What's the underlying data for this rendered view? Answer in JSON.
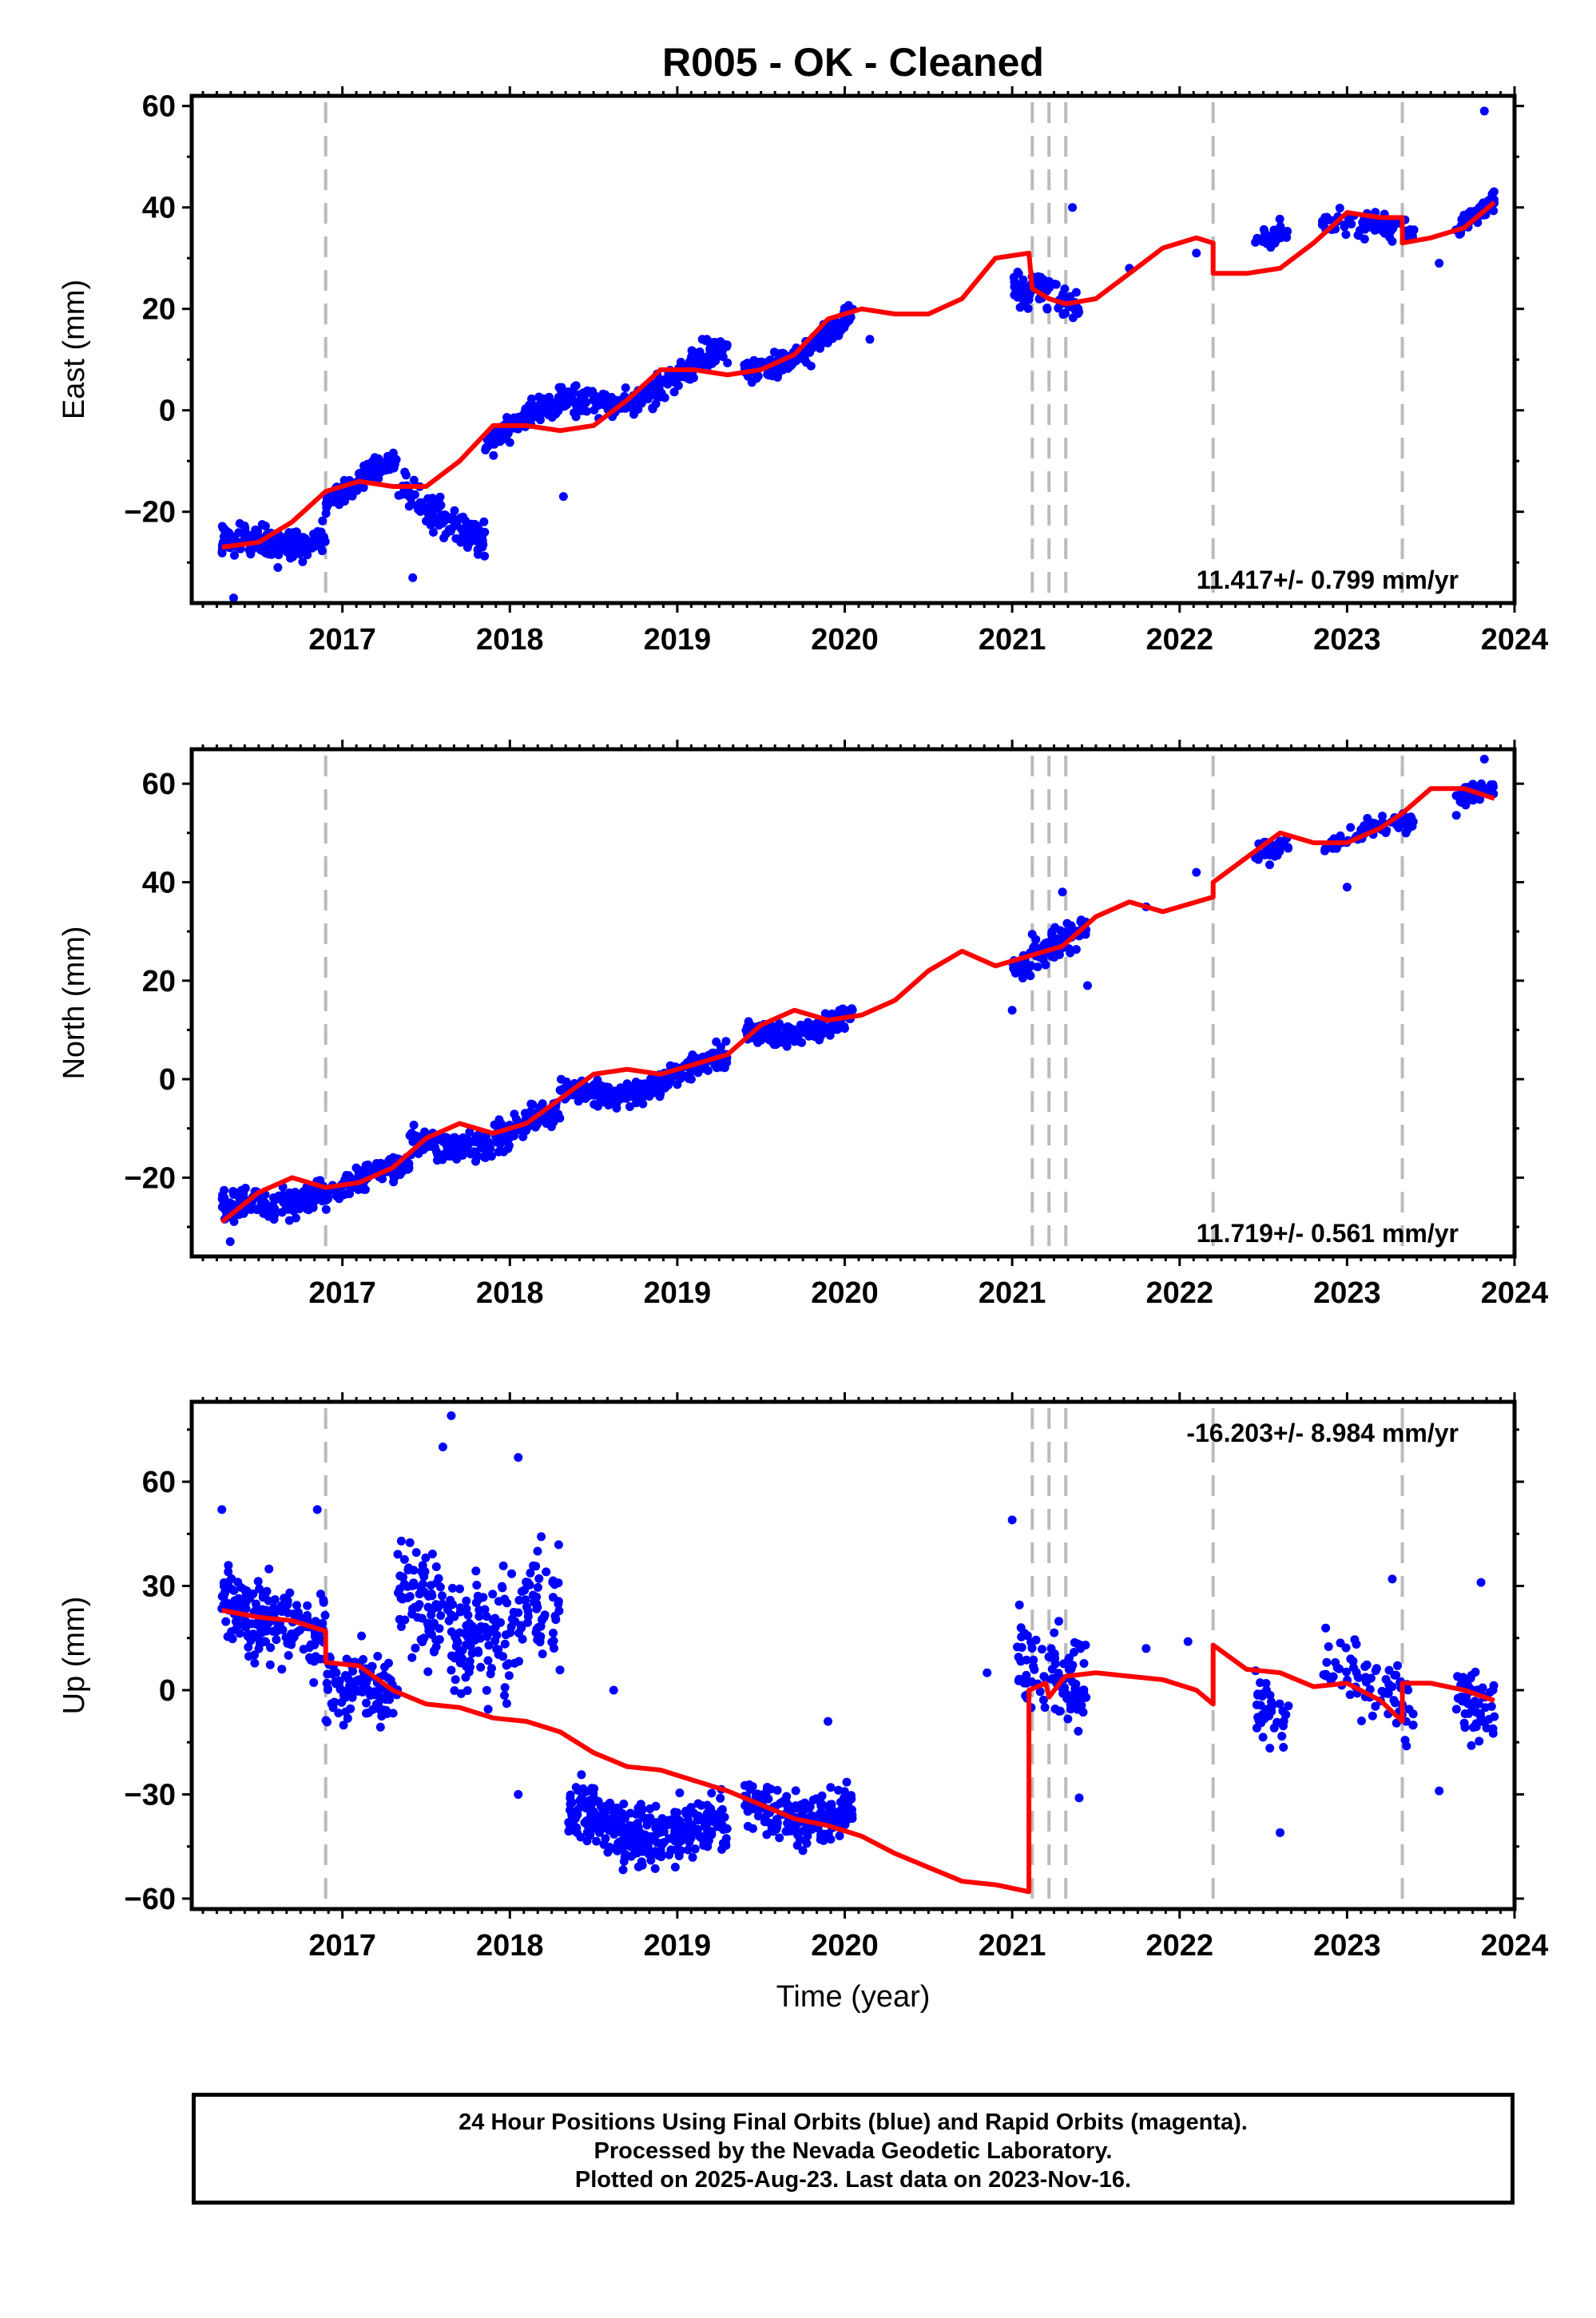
{
  "title": "R005  - OK - Cleaned",
  "xlabel": "Time (year)",
  "caption": [
    "24 Hour Positions Using Final Orbits (blue) and Rapid Orbits (magenta).",
    "Processed by the Nevada Geodetic Laboratory.",
    "Plotted on 2025-Aug-23. Last data on 2023-Nov-16."
  ],
  "colors": {
    "data": "#0000ff",
    "model": "#ff0000",
    "steps": "#bbbbbb",
    "frame": "#000000"
  },
  "chart_data": [
    {
      "type": "scatter",
      "ylabel": "East (mm)",
      "rate_label": "11.417+/- 0.799 mm/yr",
      "xlim": [
        2016.1,
        2024.0
      ],
      "ylim": [
        -38,
        62
      ],
      "xticks": [
        2017,
        2018,
        2019,
        2020,
        2021,
        2022,
        2023,
        2024
      ],
      "yticks": [
        -20,
        0,
        20,
        40,
        60
      ],
      "steps": [
        2016.9,
        2021.12,
        2021.22,
        2021.32,
        2022.2,
        2023.33
      ],
      "data_segments": [
        {
          "x": [
            2016.28,
            2016.9
          ],
          "a": -27,
          "b": -24,
          "amp": 1.5,
          "noise": 2.6,
          "n": 180
        },
        {
          "x": [
            2016.9,
            2017.33
          ],
          "a": -17,
          "b": -12,
          "amp": 2.0,
          "noise": 2.2,
          "n": 110
        },
        {
          "x": [
            2017.33,
            2017.85
          ],
          "a": -17,
          "b": -23,
          "amp": 3.0,
          "noise": 3.2,
          "n": 120
        },
        {
          "x": [
            2017.85,
            2019.3
          ],
          "a": -5,
          "b": 10,
          "amp": 2.5,
          "noise": 2.3,
          "n": 360
        },
        {
          "x": [
            2019.4,
            2020.05
          ],
          "a": 7,
          "b": 19,
          "amp": 2.0,
          "noise": 2.0,
          "n": 170
        },
        {
          "x": [
            2021.0,
            2021.4
          ],
          "a": 25,
          "b": 20,
          "amp": 1.0,
          "noise": 2.8,
          "n": 90
        },
        {
          "x": [
            2022.45,
            2022.65
          ],
          "a": 32,
          "b": 36,
          "amp": 0.5,
          "noise": 2.2,
          "n": 35
        },
        {
          "x": [
            2022.85,
            2023.4
          ],
          "a": 38,
          "b": 34,
          "amp": 1.0,
          "noise": 2.0,
          "n": 75
        },
        {
          "x": [
            2023.65,
            2023.88
          ],
          "a": 36,
          "b": 42,
          "amp": 0.5,
          "noise": 2.0,
          "n": 55
        }
      ],
      "model": {
        "x": [
          2016.28,
          2016.5,
          2016.7,
          2016.9,
          2017.1,
          2017.3,
          2017.5,
          2017.7,
          2017.9,
          2018.1,
          2018.3,
          2018.5,
          2018.7,
          2018.9,
          2019.1,
          2019.3,
          2019.5,
          2019.7,
          2019.9,
          2020.1,
          2020.3,
          2020.5,
          2020.7,
          2020.9,
          2021.1,
          2021.12,
          2021.22,
          2021.32,
          2021.5,
          2021.7,
          2021.9,
          2022.1,
          2022.2,
          2022.2,
          2022.4,
          2022.6,
          2022.8,
          2023.0,
          2023.2,
          2023.33,
          2023.33,
          2023.5,
          2023.7,
          2023.88
        ],
        "y": [
          -27,
          -26,
          -22,
          -16,
          -14,
          -15,
          -15,
          -10,
          -3,
          -3,
          -4,
          -3,
          2,
          8,
          8,
          7,
          8,
          11,
          18,
          20,
          19,
          19,
          22,
          30,
          31,
          24,
          22,
          21,
          22,
          27,
          32,
          34,
          33,
          27,
          27,
          28,
          33,
          39,
          38,
          38,
          33,
          34,
          36,
          41
        ]
      },
      "outliers": [
        {
          "x": 2017.42,
          "y": -33
        },
        {
          "x": 2016.35,
          "y": -37
        },
        {
          "x": 2018.32,
          "y": -17
        },
        {
          "x": 2021.36,
          "y": 40
        },
        {
          "x": 2023.82,
          "y": 59
        },
        {
          "x": 2021.7,
          "y": 28
        },
        {
          "x": 2022.1,
          "y": 31
        },
        {
          "x": 2020.15,
          "y": 14
        },
        {
          "x": 2023.55,
          "y": 29
        }
      ]
    },
    {
      "type": "scatter",
      "ylabel": "North (mm)",
      "rate_label": "11.719+/- 0.561 mm/yr",
      "xlim": [
        2016.1,
        2024.0
      ],
      "ylim": [
        -36,
        67
      ],
      "xticks": [
        2017,
        2018,
        2019,
        2020,
        2021,
        2022,
        2023,
        2024
      ],
      "yticks": [
        -20,
        0,
        20,
        40,
        60
      ],
      "steps": [
        2016.9,
        2021.12,
        2021.22,
        2021.32,
        2022.2,
        2023.33
      ],
      "data_segments": [
        {
          "x": [
            2016.28,
            2016.9
          ],
          "a": -28,
          "b": -21,
          "amp": 2.0,
          "noise": 2.6,
          "n": 170
        },
        {
          "x": [
            2016.9,
            2017.4
          ],
          "a": -23,
          "b": -18,
          "amp": 1.5,
          "noise": 2.2,
          "n": 120
        },
        {
          "x": [
            2017.4,
            2018.3
          ],
          "a": -13,
          "b": -9,
          "amp": 2.5,
          "noise": 2.5,
          "n": 220
        },
        {
          "x": [
            2018.3,
            2019.3
          ],
          "a": -4,
          "b": 3,
          "amp": 2.0,
          "noise": 2.0,
          "n": 260
        },
        {
          "x": [
            2019.4,
            2020.05
          ],
          "a": 9,
          "b": 13,
          "amp": 2.0,
          "noise": 1.8,
          "n": 170
        },
        {
          "x": [
            2021.0,
            2021.45
          ],
          "a": 22,
          "b": 30,
          "amp": 1.0,
          "noise": 2.8,
          "n": 95
        },
        {
          "x": [
            2022.45,
            2022.65
          ],
          "a": 45,
          "b": 49,
          "amp": 0.5,
          "noise": 2.0,
          "n": 35
        },
        {
          "x": [
            2022.85,
            2023.4
          ],
          "a": 48,
          "b": 52,
          "amp": 1.0,
          "noise": 2.0,
          "n": 70
        },
        {
          "x": [
            2023.65,
            2023.88
          ],
          "a": 57,
          "b": 60,
          "amp": 0.5,
          "noise": 1.8,
          "n": 55
        }
      ],
      "model": {
        "x": [
          2016.28,
          2016.5,
          2016.7,
          2016.9,
          2017.1,
          2017.3,
          2017.5,
          2017.7,
          2017.9,
          2018.1,
          2018.3,
          2018.5,
          2018.7,
          2018.9,
          2019.1,
          2019.3,
          2019.5,
          2019.7,
          2019.9,
          2020.1,
          2020.3,
          2020.5,
          2020.7,
          2020.9,
          2021.1,
          2021.3,
          2021.5,
          2021.7,
          2021.9,
          2022.2,
          2022.2,
          2022.4,
          2022.6,
          2022.8,
          2023.0,
          2023.2,
          2023.33,
          2023.5,
          2023.7,
          2023.88
        ],
        "y": [
          -29,
          -23,
          -20,
          -22,
          -21,
          -18,
          -12,
          -9,
          -11,
          -9,
          -4,
          1,
          2,
          1,
          3,
          5,
          11,
          14,
          12,
          13,
          16,
          22,
          26,
          23,
          25,
          27,
          33,
          36,
          34,
          37,
          40,
          45,
          50,
          48,
          48,
          51,
          54,
          59,
          59,
          57
        ]
      },
      "outliers": [
        {
          "x": 2016.33,
          "y": -33
        },
        {
          "x": 2021.0,
          "y": 14
        },
        {
          "x": 2023.0,
          "y": 39
        },
        {
          "x": 2021.45,
          "y": 19
        },
        {
          "x": 2022.1,
          "y": 42
        },
        {
          "x": 2023.82,
          "y": 65
        },
        {
          "x": 2021.3,
          "y": 38
        },
        {
          "x": 2021.8,
          "y": 35
        }
      ]
    },
    {
      "type": "scatter",
      "ylabel": "Up (mm)",
      "rate_label": "-16.203+/- 8.984 mm/yr",
      "xlim": [
        2016.1,
        2024.0
      ],
      "ylim": [
        -63,
        83
      ],
      "xticks": [
        2017,
        2018,
        2019,
        2020,
        2021,
        2022,
        2023,
        2024
      ],
      "yticks": [
        -60,
        -30,
        0,
        30,
        60
      ],
      "steps": [
        2016.9,
        2021.12,
        2021.22,
        2021.32,
        2022.2,
        2023.33
      ],
      "data_segments": [
        {
          "x": [
            2016.28,
            2016.9
          ],
          "a": 22,
          "b": 20,
          "amp": 3,
          "noise": 9,
          "n": 190
        },
        {
          "x": [
            2016.9,
            2017.33
          ],
          "a": 3,
          "b": -5,
          "amp": 3,
          "noise": 8,
          "n": 110
        },
        {
          "x": [
            2017.33,
            2018.3
          ],
          "a": 25,
          "b": 18,
          "amp": 8,
          "noise": 15,
          "n": 260
        },
        {
          "x": [
            2018.35,
            2019.3
          ],
          "a": -36,
          "b": -42,
          "amp": 3,
          "noise": 7,
          "n": 330
        },
        {
          "x": [
            2019.4,
            2020.05
          ],
          "a": -33,
          "b": -35,
          "amp": 3,
          "noise": 6,
          "n": 190
        },
        {
          "x": [
            2021.0,
            2021.45
          ],
          "a": 8,
          "b": 0,
          "amp": 2,
          "noise": 10,
          "n": 95
        },
        {
          "x": [
            2022.45,
            2022.65
          ],
          "a": -3,
          "b": -8,
          "amp": 2,
          "noise": 10,
          "n": 40
        },
        {
          "x": [
            2022.85,
            2023.4
          ],
          "a": 10,
          "b": -8,
          "amp": 3,
          "noise": 9,
          "n": 75
        },
        {
          "x": [
            2023.65,
            2023.88
          ],
          "a": 2,
          "b": -6,
          "amp": 2,
          "noise": 8,
          "n": 55
        }
      ],
      "model": {
        "x": [
          2016.28,
          2016.5,
          2016.7,
          2016.9,
          2016.9,
          2017.1,
          2017.3,
          2017.5,
          2017.7,
          2017.9,
          2018.1,
          2018.3,
          2018.5,
          2018.7,
          2018.9,
          2019.1,
          2019.3,
          2019.5,
          2019.7,
          2019.9,
          2020.1,
          2020.3,
          2020.5,
          2020.7,
          2020.9,
          2021.1,
          2021.1,
          2021.2,
          2021.22,
          2021.3,
          2021.32,
          2021.5,
          2021.7,
          2021.9,
          2022.1,
          2022.2,
          2022.2,
          2022.4,
          2022.6,
          2022.8,
          2023.0,
          2023.2,
          2023.33,
          2023.33,
          2023.5,
          2023.7,
          2023.88
        ],
        "y": [
          23,
          21,
          20,
          17,
          8,
          7,
          0,
          -4,
          -5,
          -8,
          -9,
          -12,
          -18,
          -22,
          -23,
          -26,
          -29,
          -33,
          -37,
          -39,
          -42,
          -47,
          -51,
          -55,
          -56,
          -58,
          0,
          2,
          -2,
          3,
          4,
          5,
          4,
          3,
          0,
          -4,
          13,
          6,
          5,
          1,
          2,
          -3,
          -9,
          2,
          2,
          0,
          -3
        ]
      },
      "outliers": [
        {
          "x": 2016.28,
          "y": 52
        },
        {
          "x": 2016.85,
          "y": 52
        },
        {
          "x": 2017.65,
          "y": 79
        },
        {
          "x": 2017.6,
          "y": 70
        },
        {
          "x": 2018.05,
          "y": 67
        },
        {
          "x": 2018.05,
          "y": -30
        },
        {
          "x": 2018.62,
          "y": 0
        },
        {
          "x": 2019.9,
          "y": -9
        },
        {
          "x": 2021.0,
          "y": 49
        },
        {
          "x": 2021.4,
          "y": -31
        },
        {
          "x": 2022.6,
          "y": -41
        },
        {
          "x": 2023.27,
          "y": 32
        },
        {
          "x": 2023.55,
          "y": -29
        },
        {
          "x": 2023.8,
          "y": 31
        },
        {
          "x": 2020.85,
          "y": 5
        },
        {
          "x": 2021.8,
          "y": 12
        },
        {
          "x": 2022.05,
          "y": 14
        }
      ]
    }
  ]
}
